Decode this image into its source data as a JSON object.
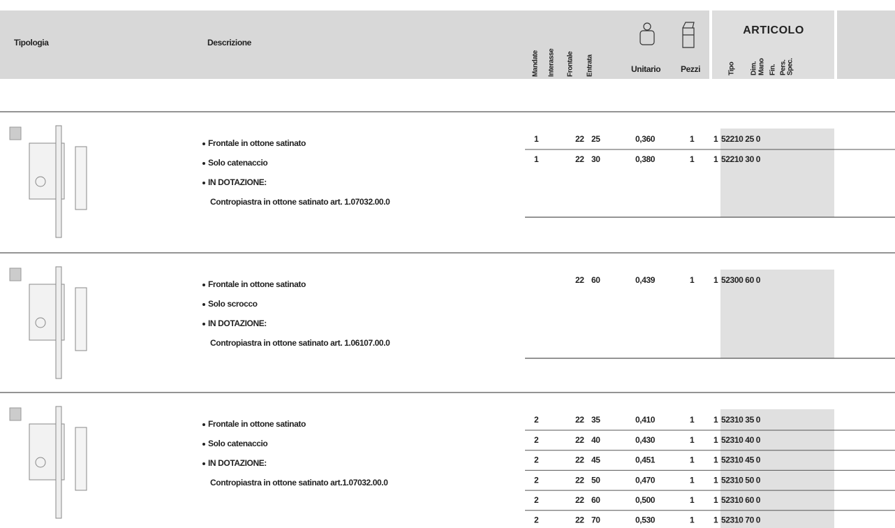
{
  "header": {
    "tipologia": "Tipologia",
    "descrizione": "Descrizione",
    "columns": [
      "Mandate",
      "Interasse",
      "Frontale",
      "Entrata"
    ],
    "unitario": "Unitario",
    "pezzi": "Pezzi",
    "articolo": "ARTICOLO",
    "articolo_columns": [
      "Tipo",
      "Dim.",
      "Mano",
      "Fin.",
      "Pers.",
      "Spec."
    ]
  },
  "sections": [
    {
      "bullets": [
        "Frontale in ottone satinato",
        "Solo catenaccio",
        "IN DOTAZIONE:"
      ],
      "note": "Contropiastra in ottone satinato art. 1.07032.00.0",
      "rows": [
        {
          "mandate": "1",
          "frontale": "22",
          "entrata": "25",
          "peso": "0,360",
          "pezzi": "1",
          "tipo": "1",
          "codice": "52210 25 0"
        },
        {
          "mandate": "1",
          "frontale": "22",
          "entrata": "30",
          "peso": "0,380",
          "pezzi": "1",
          "tipo": "1",
          "codice": "52210 30 0"
        }
      ]
    },
    {
      "bullets": [
        "Frontale in ottone satinato",
        "Solo scrocco",
        "IN DOTAZIONE:"
      ],
      "note": "Contropiastra in ottone satinato art. 1.06107.00.0",
      "rows": [
        {
          "frontale": "22",
          "entrata": "60",
          "peso": "0,439",
          "pezzi": "1",
          "tipo": "1",
          "codice": "52300 60 0"
        }
      ]
    },
    {
      "bullets": [
        "Frontale in ottone satinato",
        "Solo catenaccio",
        "IN DOTAZIONE:"
      ],
      "note": "Contropiastra in ottone satinato art.1.07032.00.0",
      "rows": [
        {
          "mandate": "2",
          "frontale": "22",
          "entrata": "35",
          "peso": "0,410",
          "pezzi": "1",
          "tipo": "1",
          "codice": "52310 35 0"
        },
        {
          "mandate": "2",
          "frontale": "22",
          "entrata": "40",
          "peso": "0,430",
          "pezzi": "1",
          "tipo": "1",
          "codice": "52310 40 0"
        },
        {
          "mandate": "2",
          "frontale": "22",
          "entrata": "45",
          "peso": "0,451",
          "pezzi": "1",
          "tipo": "1",
          "codice": "52310 45 0"
        },
        {
          "mandate": "2",
          "frontale": "22",
          "entrata": "50",
          "peso": "0,470",
          "pezzi": "1",
          "tipo": "1",
          "codice": "52310 50 0"
        },
        {
          "mandate": "2",
          "frontale": "22",
          "entrata": "60",
          "peso": "0,500",
          "pezzi": "1",
          "tipo": "1",
          "codice": "52310 60 0"
        },
        {
          "mandate": "2",
          "frontale": "22",
          "entrata": "70",
          "peso": "0,530",
          "pezzi": "1",
          "tipo": "1",
          "codice": "52310 70 0"
        }
      ]
    }
  ]
}
